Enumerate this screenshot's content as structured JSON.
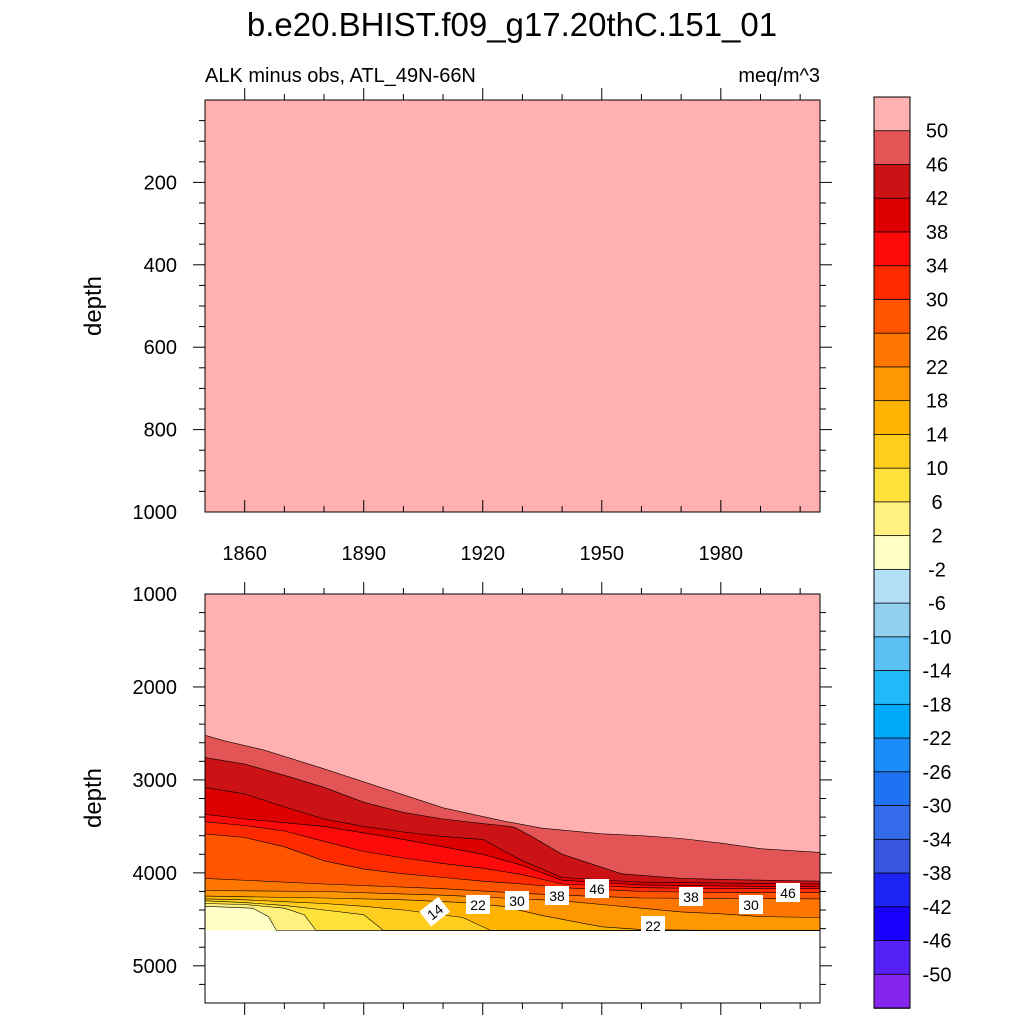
{
  "chart_data": {
    "type": "heatmap",
    "title": "b.e20.BHIST.f09_g17.20thC.151_01",
    "subtitle_left": "ALK minus obs, ATL_49N-66N",
    "units": "meq/m^3",
    "x_range": [
      1850,
      2005
    ],
    "x_ticks": [
      1860,
      1890,
      1920,
      1950,
      1980
    ],
    "panels": [
      {
        "name": "upper",
        "ylabel": "depth",
        "ylim": [
          0,
          1000
        ],
        "y_ticks": [
          200,
          400,
          600,
          800,
          1000
        ],
        "fill_level": ">50",
        "note": "uniform field above the top contour level"
      },
      {
        "name": "lower",
        "ylabel": "depth",
        "ylim": [
          1000,
          5400
        ],
        "y_ticks": [
          1000,
          2000,
          3000,
          4000,
          5000
        ],
        "data_bottom_depth": 4620,
        "bands": [
          {
            "label": "46-50",
            "boundary": [
              [
                1850,
                2520
              ],
              [
                1855,
                2580
              ],
              [
                1865,
                2680
              ],
              [
                1880,
                2880
              ],
              [
                1900,
                3160
              ],
              [
                1910,
                3300
              ],
              [
                1925,
                3440
              ],
              [
                1935,
                3520
              ],
              [
                1950,
                3580
              ],
              [
                1960,
                3600
              ],
              [
                1970,
                3630
              ],
              [
                1980,
                3680
              ],
              [
                1990,
                3740
              ],
              [
                2005,
                3780
              ]
            ]
          },
          {
            "label": "42-46",
            "boundary": [
              [
                1850,
                2760
              ],
              [
                1860,
                2830
              ],
              [
                1870,
                2950
              ],
              [
                1880,
                3080
              ],
              [
                1890,
                3240
              ],
              [
                1900,
                3350
              ],
              [
                1910,
                3420
              ],
              [
                1920,
                3470
              ],
              [
                1925,
                3490
              ],
              [
                1928,
                3510
              ],
              [
                1932,
                3600
              ],
              [
                1940,
                3800
              ],
              [
                1955,
                4010
              ],
              [
                1970,
                4060
              ],
              [
                1985,
                4075
              ],
              [
                2005,
                4090
              ]
            ]
          },
          {
            "label": "38-42",
            "boundary": [
              [
                1850,
                3080
              ],
              [
                1860,
                3150
              ],
              [
                1870,
                3290
              ],
              [
                1880,
                3420
              ],
              [
                1890,
                3500
              ],
              [
                1900,
                3560
              ],
              [
                1910,
                3610
              ],
              [
                1920,
                3640
              ],
              [
                1930,
                3870
              ],
              [
                1940,
                4050
              ],
              [
                1960,
                4100
              ],
              [
                1980,
                4110
              ],
              [
                2005,
                4120
              ]
            ]
          },
          {
            "label": "34-38",
            "boundary": [
              [
                1850,
                3370
              ],
              [
                1860,
                3420
              ],
              [
                1870,
                3460
              ],
              [
                1880,
                3500
              ],
              [
                1890,
                3570
              ],
              [
                1900,
                3640
              ],
              [
                1910,
                3720
              ],
              [
                1920,
                3800
              ],
              [
                1930,
                3920
              ],
              [
                1940,
                4080
              ],
              [
                1960,
                4130
              ],
              [
                1980,
                4140
              ],
              [
                2005,
                4150
              ]
            ]
          },
          {
            "label": "30-34",
            "boundary": [
              [
                1850,
                3450
              ],
              [
                1860,
                3490
              ],
              [
                1870,
                3550
              ],
              [
                1880,
                3660
              ],
              [
                1890,
                3770
              ],
              [
                1900,
                3840
              ],
              [
                1910,
                3900
              ],
              [
                1920,
                3950
              ],
              [
                1930,
                4020
              ],
              [
                1940,
                4120
              ],
              [
                1960,
                4160
              ],
              [
                1980,
                4170
              ],
              [
                2005,
                4170
              ]
            ]
          },
          {
            "label": "26-30",
            "boundary": [
              [
                1850,
                3580
              ],
              [
                1860,
                3620
              ],
              [
                1870,
                3720
              ],
              [
                1880,
                3870
              ],
              [
                1890,
                3960
              ],
              [
                1900,
                4010
              ],
              [
                1910,
                4050
              ],
              [
                1920,
                4090
              ],
              [
                1930,
                4120
              ],
              [
                1940,
                4160
              ],
              [
                1960,
                4200
              ],
              [
                1980,
                4210
              ],
              [
                2005,
                4210
              ]
            ]
          },
          {
            "label": "22-26",
            "boundary": [
              [
                1850,
                4060
              ],
              [
                1880,
                4120
              ],
              [
                1910,
                4170
              ],
              [
                1930,
                4220
              ],
              [
                1940,
                4240
              ],
              [
                1960,
                4270
              ],
              [
                1980,
                4275
              ],
              [
                2005,
                4280
              ]
            ]
          },
          {
            "label": "18-22",
            "boundary": [
              [
                1850,
                4190
              ],
              [
                1880,
                4200
              ],
              [
                1910,
                4240
              ],
              [
                1925,
                4270
              ],
              [
                1935,
                4290
              ],
              [
                1940,
                4300
              ],
              [
                1950,
                4340
              ],
              [
                1960,
                4380
              ],
              [
                1970,
                4420
              ],
              [
                1980,
                4440
              ],
              [
                1990,
                4470
              ],
              [
                2005,
                4480
              ]
            ]
          },
          {
            "label": "14-18",
            "boundary": [
              [
                1850,
                4250
              ],
              [
                1880,
                4270
              ],
              [
                1900,
                4290
              ],
              [
                1915,
                4320
              ],
              [
                1925,
                4360
              ],
              [
                1935,
                4460
              ],
              [
                1945,
                4540
              ],
              [
                1950,
                4580
              ],
              [
                1960,
                4610
              ],
              [
                1980,
                4620
              ],
              [
                2005,
                4620
              ]
            ]
          },
          {
            "label": "10-14",
            "boundary": [
              [
                1850,
                4280
              ],
              [
                1860,
                4290
              ],
              [
                1870,
                4310
              ],
              [
                1880,
                4330
              ],
              [
                1890,
                4360
              ],
              [
                1900,
                4400
              ],
              [
                1915,
                4480
              ],
              [
                1922,
                4620
              ],
              [
                2005,
                4620
              ]
            ]
          },
          {
            "label": "6-10",
            "boundary": [
              [
                1850,
                4300
              ],
              [
                1860,
                4320
              ],
              [
                1870,
                4350
              ],
              [
                1880,
                4400
              ],
              [
                1890,
                4450
              ],
              [
                1895,
                4620
              ],
              [
                2005,
                4620
              ]
            ]
          },
          {
            "label": "2-6",
            "boundary": [
              [
                1850,
                4330
              ],
              [
                1860,
                4340
              ],
              [
                1870,
                4380
              ],
              [
                1875,
                4450
              ],
              [
                1878,
                4620
              ],
              [
                2005,
                4620
              ]
            ]
          },
          {
            "label": "-2-2",
            "boundary": [
              [
                1850,
                4360
              ],
              [
                1862,
                4380
              ],
              [
                1866,
                4470
              ],
              [
                1868,
                4620
              ],
              [
                2005,
                4620
              ]
            ]
          }
        ],
        "contour_labels": [
          "14",
          "22",
          "30",
          "38",
          "46",
          "38",
          "30",
          "46",
          "22"
        ]
      }
    ],
    "colorbar": {
      "levels": [
        "50",
        "46",
        "42",
        "38",
        "34",
        "30",
        "26",
        "22",
        "18",
        "14",
        "10",
        "6",
        "2",
        "-2",
        "-6",
        "-10",
        "-14",
        "-18",
        "-22",
        "-26",
        "-30",
        "-34",
        "-38",
        "-42",
        "-46",
        "-50"
      ],
      "colors": [
        "#FFB0B0",
        "#E35456",
        "#CB1214",
        "#DC0000",
        "#FF0A0A",
        "#FF2A00",
        "#FF5500",
        "#FF7700",
        "#FF9700",
        "#FFB500",
        "#FFCE1E",
        "#FFE13C",
        "#FFF080",
        "#FFFFC6",
        "#B4DDF6",
        "#92CEF0",
        "#5CC0F4",
        "#20BAFA",
        "#00AAFA",
        "#1C8CF8",
        "#1F72F2",
        "#356AEA",
        "#3A55E0",
        "#1C23F4",
        "#1700FF",
        "#5520F5",
        "#8426EB"
      ]
    }
  }
}
